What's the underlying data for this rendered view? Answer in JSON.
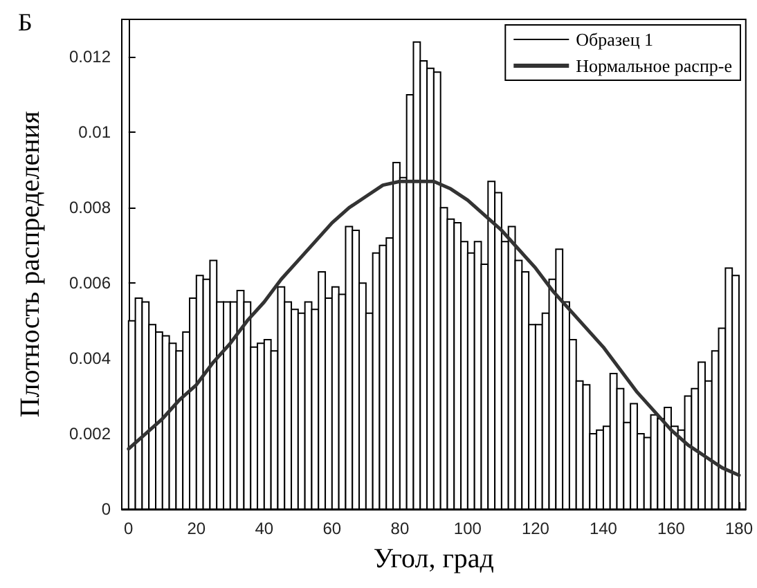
{
  "chart_data": {
    "type": "histogram",
    "title": "Б",
    "xlabel": "Угол, град",
    "ylabel": "Плотность распределения",
    "bins": [
      0,
      2,
      4,
      6,
      8,
      10,
      12,
      14,
      16,
      18,
      20,
      22,
      24,
      26,
      28,
      30,
      32,
      34,
      36,
      38,
      40,
      42,
      44,
      46,
      48,
      50,
      52,
      54,
      56,
      58,
      60,
      62,
      64,
      66,
      68,
      70,
      72,
      74,
      76,
      78,
      80,
      82,
      84,
      86,
      88,
      90,
      92,
      94,
      96,
      98,
      100,
      102,
      104,
      106,
      108,
      110,
      112,
      114,
      116,
      118,
      120,
      122,
      124,
      126,
      128,
      130,
      132,
      134,
      136,
      138,
      140,
      142,
      144,
      146,
      148,
      150,
      152,
      154,
      156,
      158,
      160,
      162,
      164,
      166,
      168,
      170,
      172,
      174,
      176,
      178,
      180
    ],
    "series": [
      {
        "name": "Образец 1",
        "color": "#ffffff",
        "values": [
          0.005,
          0.0056,
          0.0055,
          0.0049,
          0.0047,
          0.0046,
          0.0044,
          0.0042,
          0.0047,
          0.0056,
          0.0062,
          0.0061,
          0.0066,
          0.0055,
          0.0055,
          0.0055,
          0.0058,
          0.0055,
          0.0043,
          0.0044,
          0.0045,
          0.0042,
          0.0059,
          0.0055,
          0.0053,
          0.0052,
          0.0055,
          0.0053,
          0.0063,
          0.0056,
          0.0059,
          0.0057,
          0.0075,
          0.0074,
          0.006,
          0.0052,
          0.0068,
          0.007,
          0.0072,
          0.0092,
          0.0088,
          0.011,
          0.0124,
          0.0119,
          0.0117,
          0.0116,
          0.008,
          0.0077,
          0.0076,
          0.0071,
          0.0068,
          0.0071,
          0.0065,
          0.0087,
          0.0084,
          0.0071,
          0.0075,
          0.0066,
          0.0063,
          0.0049,
          0.0049,
          0.0052,
          0.0061,
          0.0069,
          0.0055,
          0.0045,
          0.0034,
          0.0033,
          0.002,
          0.0021,
          0.0022,
          0.0036,
          0.0032,
          0.0023,
          0.0028,
          0.002,
          0.0019,
          0.0025,
          0.0024,
          0.0027,
          0.0022,
          0.0021,
          0.003,
          0.0032,
          0.0039,
          0.0034,
          0.0042,
          0.0048,
          0.0064,
          0.0062
        ]
      },
      {
        "name": "Нормальное распр-е",
        "type": "line",
        "color": "#333333",
        "x": [
          0,
          5,
          10,
          15,
          20,
          25,
          30,
          35,
          40,
          45,
          50,
          55,
          60,
          65,
          70,
          75,
          80,
          85,
          90,
          95,
          100,
          105,
          110,
          115,
          120,
          125,
          130,
          135,
          140,
          145,
          150,
          155,
          160,
          165,
          170,
          175,
          180
        ],
        "values": [
          0.0016,
          0.002,
          0.0024,
          0.0029,
          0.0033,
          0.0039,
          0.0044,
          0.005,
          0.0055,
          0.0061,
          0.0066,
          0.0071,
          0.0076,
          0.008,
          0.0083,
          0.0086,
          0.0087,
          0.0087,
          0.0087,
          0.0085,
          0.0082,
          0.0078,
          0.0074,
          0.0069,
          0.0064,
          0.0058,
          0.0053,
          0.0048,
          0.0043,
          0.0037,
          0.0031,
          0.0026,
          0.0021,
          0.0017,
          0.0014,
          0.0011,
          0.0009
        ]
      }
    ],
    "xlim": [
      -2,
      182
    ],
    "ylim": [
      0,
      0.013
    ],
    "xticks": [
      0,
      20,
      40,
      60,
      80,
      100,
      120,
      140,
      160,
      180
    ],
    "yticks": [
      0,
      0.002,
      0.004,
      0.006,
      0.008,
      0.01,
      0.012
    ],
    "legend": "top right",
    "marker": "none",
    "line_style": "solid"
  }
}
